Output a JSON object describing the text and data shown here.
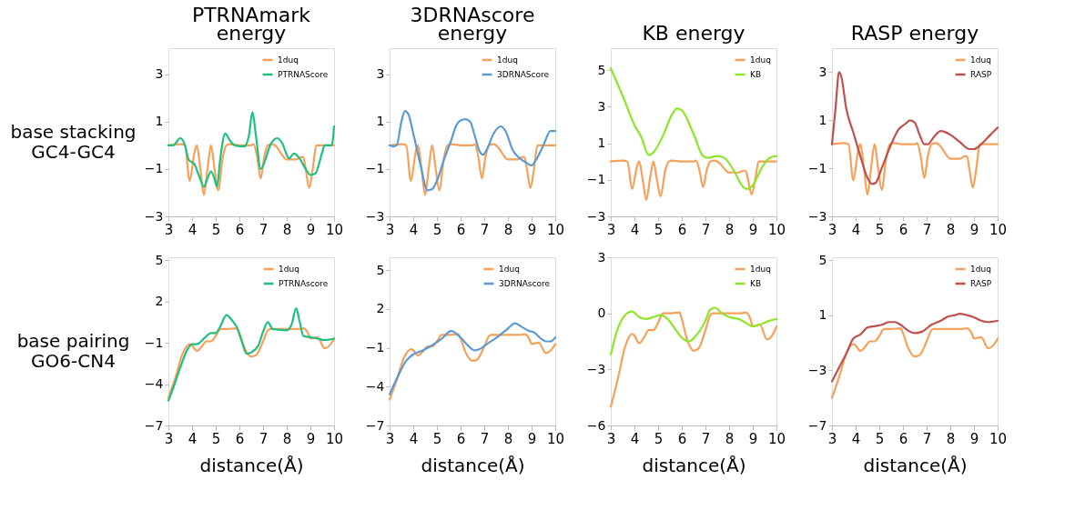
{
  "chart_data": [
    {
      "type": "line",
      "title": "PTRNAmark\nenergy",
      "ylabel": "base stacking\nGC4-GC4",
      "xlim": [
        3,
        10
      ],
      "xticks": [
        3,
        4,
        5,
        6,
        7,
        8,
        9,
        10
      ],
      "ylim": [
        -3,
        4.1
      ],
      "yticks": [
        -3,
        -1,
        1,
        3
      ],
      "grid": false,
      "legend": "top right",
      "series": [
        {
          "name": "1duq",
          "color": "#f5a15a",
          "x": [
            3,
            3.5,
            3.7,
            3.9,
            4.1,
            4.2,
            4.35,
            4.5,
            4.65,
            4.8,
            4.95,
            5.1,
            5.3,
            5.45,
            5.6,
            6,
            6.5,
            6.6,
            6.75,
            6.9,
            7.05,
            7.2,
            7.4,
            7.6,
            7.8,
            8,
            8.4,
            8.6,
            8.7,
            8.8,
            8.95,
            9.1,
            9.25,
            9.5,
            10
          ],
          "values": [
            0,
            0.05,
            0,
            -1.5,
            -0.3,
            0,
            -1,
            -2.1,
            -1,
            0,
            -1,
            -1.9,
            -0.5,
            0,
            0.05,
            0,
            0,
            0.05,
            -0.5,
            -1.4,
            -0.5,
            0,
            0.05,
            -0.1,
            -0.4,
            -0.6,
            -0.6,
            -0.5,
            -0.5,
            -1,
            -1.8,
            -1,
            0,
            0,
            0
          ]
        },
        {
          "name": "PTRNAScore",
          "color": "#1fc07f",
          "x": [
            3,
            3.2,
            3.5,
            3.7,
            3.85,
            4.1,
            4.3,
            4.5,
            4.65,
            4.8,
            5,
            5.05,
            5.2,
            5.4,
            5.6,
            5.8,
            6.2,
            6.4,
            6.55,
            6.7,
            6.9,
            7.1,
            7.3,
            7.6,
            7.8,
            8.1,
            8.3,
            8.5,
            8.8,
            9,
            9.2,
            9.5,
            9.6,
            9.9,
            10
          ],
          "values": [
            0,
            0,
            0.3,
            0,
            -0.6,
            -0.8,
            -1.3,
            -1.75,
            -1.4,
            -1.1,
            -1.6,
            -1.75,
            -0.5,
            0.5,
            0.2,
            0,
            -0.05,
            0.4,
            1.4,
            0.4,
            -1,
            -0.6,
            0,
            0.3,
            0.1,
            -0.55,
            -0.35,
            -0.5,
            -1,
            -1.25,
            -1.2,
            -0.3,
            0,
            0,
            0.8
          ]
        }
      ]
    },
    {
      "type": "line",
      "title": "3DRNAscore\nenergy",
      "xlim": [
        3,
        10
      ],
      "xticks": [
        3,
        4,
        5,
        6,
        7,
        8,
        9,
        10
      ],
      "ylim": [
        -3,
        4.1
      ],
      "yticks": [
        -3,
        -1,
        1,
        3
      ],
      "grid": false,
      "legend": "top right",
      "series": [
        {
          "name": "1duq",
          "color": "#f5a15a",
          "x": [
            3,
            3.5,
            3.7,
            3.9,
            4.1,
            4.2,
            4.35,
            4.5,
            4.65,
            4.8,
            4.95,
            5.1,
            5.3,
            5.45,
            5.6,
            6,
            6.5,
            6.6,
            6.75,
            6.9,
            7.05,
            7.2,
            7.4,
            7.6,
            7.8,
            8,
            8.4,
            8.6,
            8.7,
            8.8,
            8.95,
            9.1,
            9.25,
            9.5,
            10
          ],
          "values": [
            0,
            0.05,
            0,
            -1.5,
            -0.3,
            0,
            -1,
            -2.1,
            -1,
            0,
            -1,
            -1.9,
            -0.5,
            0,
            0.05,
            0,
            0,
            0.05,
            -0.5,
            -1.4,
            -0.5,
            0,
            0.05,
            -0.1,
            -0.4,
            -0.6,
            -0.6,
            -0.5,
            -0.5,
            -1,
            -1.8,
            -1,
            0,
            0,
            0
          ]
        },
        {
          "name": "3DRNAScore",
          "color": "#5b9bd5",
          "x": [
            3,
            3.15,
            3.3,
            3.5,
            3.65,
            3.8,
            4,
            4.3,
            4.6,
            4.8,
            5,
            5.3,
            5.6,
            5.8,
            6,
            6.2,
            6.4,
            6.6,
            6.8,
            6.95,
            7.1,
            7.4,
            7.7,
            7.9,
            8.2,
            8.5,
            8.8,
            9,
            9.2,
            9.5,
            9.8,
            10
          ],
          "values": [
            0,
            -0.05,
            0,
            1,
            1.45,
            1.3,
            0.5,
            -0.8,
            -1.9,
            -1.85,
            -1.5,
            -0.6,
            0.2,
            0.8,
            1.05,
            1.1,
            1,
            0.4,
            -0.25,
            -0.4,
            -0.2,
            0.5,
            0.8,
            0.6,
            -0.2,
            -0.55,
            -0.75,
            -0.85,
            -0.6,
            0,
            0.6,
            0.6
          ]
        }
      ]
    },
    {
      "type": "line",
      "title": "KB energy",
      "xlim": [
        3,
        10
      ],
      "xticks": [
        3,
        4,
        5,
        6,
        7,
        8,
        9,
        10
      ],
      "ylim": [
        -3,
        6.2
      ],
      "yticks": [
        -3,
        -1,
        1,
        3,
        5
      ],
      "grid": false,
      "legend": "top right",
      "series": [
        {
          "name": "1duq",
          "color": "#f5a15a",
          "x": [
            3,
            3.5,
            3.7,
            3.9,
            4.1,
            4.2,
            4.35,
            4.5,
            4.65,
            4.8,
            4.95,
            5.1,
            5.3,
            5.45,
            5.6,
            6,
            6.5,
            6.6,
            6.75,
            6.9,
            7.05,
            7.2,
            7.4,
            7.6,
            7.8,
            8,
            8.4,
            8.6,
            8.7,
            8.8,
            8.95,
            9.1,
            9.25,
            9.5,
            10
          ],
          "values": [
            0,
            0.05,
            0,
            -1.5,
            -0.3,
            0,
            -1,
            -2.1,
            -1,
            0,
            -1,
            -1.9,
            -0.5,
            0,
            0.05,
            0,
            0,
            0.05,
            -0.5,
            -1.4,
            -0.5,
            0,
            0.05,
            -0.1,
            -0.4,
            -0.6,
            -0.6,
            -0.5,
            -0.5,
            -1,
            -1.8,
            -1,
            0,
            0,
            0
          ]
        },
        {
          "name": "KB",
          "color": "#8ee62a",
          "x": [
            3,
            3.5,
            4,
            4.3,
            4.6,
            4.8,
            5.2,
            5.6,
            5.8,
            6,
            6.5,
            6.9,
            7.1,
            7.5,
            7.8,
            8.2,
            8.6,
            8.8,
            9,
            9.4,
            9.7,
            10
          ],
          "values": [
            5.1,
            3.6,
            2,
            1.3,
            0.35,
            0.5,
            1.4,
            2.6,
            2.9,
            2.8,
            1.5,
            0.3,
            0.2,
            0.3,
            0.2,
            -0.5,
            -1.4,
            -1.5,
            -1.3,
            -0.3,
            0.2,
            0.3
          ]
        }
      ]
    },
    {
      "type": "line",
      "title": "RASP energy",
      "xlim": [
        3,
        10
      ],
      "xticks": [
        3,
        4,
        5,
        6,
        7,
        8,
        9,
        10
      ],
      "ylim": [
        -3,
        4
      ],
      "yticks": [
        -3,
        -1,
        1,
        3
      ],
      "grid": false,
      "legend": "top right",
      "series": [
        {
          "name": "1duq",
          "color": "#f5a15a",
          "x": [
            3,
            3.5,
            3.7,
            3.9,
            4.1,
            4.2,
            4.35,
            4.5,
            4.65,
            4.8,
            4.95,
            5.1,
            5.3,
            5.45,
            5.6,
            6,
            6.5,
            6.6,
            6.75,
            6.9,
            7.05,
            7.2,
            7.4,
            7.6,
            7.8,
            8,
            8.4,
            8.6,
            8.7,
            8.8,
            8.95,
            9.1,
            9.25,
            9.5,
            10
          ],
          "values": [
            0,
            0.05,
            0,
            -1.5,
            -0.3,
            0,
            -1,
            -2.1,
            -1,
            0,
            -1,
            -1.9,
            -0.5,
            0,
            0.05,
            0,
            0,
            0.05,
            -0.5,
            -1.4,
            -0.5,
            0,
            0.05,
            -0.1,
            -0.4,
            -0.6,
            -0.6,
            -0.5,
            -0.5,
            -1,
            -1.8,
            -1,
            0,
            0,
            0
          ]
        },
        {
          "name": "RASP",
          "color": "#c0504d",
          "x": [
            3,
            3.15,
            3.3,
            3.4,
            3.6,
            3.9,
            4.2,
            4.5,
            4.7,
            4.85,
            5.1,
            5.5,
            5.8,
            6.1,
            6.3,
            6.5,
            6.7,
            6.9,
            7.05,
            7.3,
            7.6,
            8,
            8.4,
            8.8,
            9,
            9.3,
            9.7,
            10
          ],
          "values": [
            0,
            1.5,
            3,
            2.8,
            1.5,
            0.5,
            -0.5,
            -1.4,
            -1.65,
            -1.6,
            -1,
            0,
            0.6,
            0.85,
            1,
            0.9,
            0.4,
            0,
            0,
            0.3,
            0.55,
            0.4,
            0.1,
            -0.2,
            -0.2,
            0,
            0.4,
            0.7
          ]
        }
      ]
    },
    {
      "type": "line",
      "ylabel": "base pairing\nGO6-CN4",
      "xlabel": "distance(Å)",
      "xlim": [
        3,
        10
      ],
      "xticks": [
        3,
        4,
        5,
        6,
        7,
        8,
        9,
        10
      ],
      "ylim": [
        -7,
        5.2
      ],
      "yticks": [
        -7,
        -4,
        -1,
        2,
        5
      ],
      "grid": false,
      "legend": "top right",
      "series": [
        {
          "name": "1duq",
          "color": "#f5a15a",
          "x": [
            3,
            3.3,
            3.6,
            3.9,
            4,
            4.2,
            4.4,
            4.6,
            4.8,
            5,
            5.2,
            5.5,
            5.9,
            6,
            6.2,
            6.5,
            6.7,
            7,
            7.2,
            7.3,
            8,
            8.5,
            8.7,
            8.9,
            9,
            9.3,
            9.6,
            9.9,
            10
          ],
          "values": [
            -5,
            -3.5,
            -1.8,
            -1.1,
            -1.2,
            -1.6,
            -1.3,
            -0.9,
            -0.9,
            -0.5,
            0,
            0,
            0.05,
            -0.3,
            -1.3,
            -2,
            -1.9,
            -0.9,
            -0.1,
            0,
            0,
            0,
            0.05,
            -0.3,
            -0.7,
            -0.6,
            -1.4,
            -1,
            -0.7
          ]
        },
        {
          "name": "PTRNAscore",
          "color": "#1fc07f",
          "x": [
            3,
            3.2,
            3.5,
            3.8,
            4,
            4.2,
            4.5,
            4.8,
            5,
            5.2,
            5.45,
            5.7,
            5.9,
            6.1,
            6.3,
            6.5,
            6.8,
            7,
            7.2,
            7.4,
            7.6,
            8,
            8.2,
            8.4,
            8.55,
            8.7,
            9,
            9.3,
            9.6,
            10
          ],
          "values": [
            -5.2,
            -4.3,
            -2.8,
            -1.5,
            -1.1,
            -1.1,
            -0.7,
            -0.3,
            -0.3,
            0.2,
            1,
            0.6,
            0.1,
            -0.9,
            -1.8,
            -1.7,
            -1.2,
            -0.2,
            0.5,
            0,
            -0.05,
            -0.1,
            0.3,
            1.5,
            0.5,
            -0.5,
            -0.6,
            -0.7,
            -0.8,
            -0.7
          ]
        }
      ]
    },
    {
      "type": "line",
      "xlabel": "distance(Å)",
      "xlim": [
        3,
        10
      ],
      "xticks": [
        3,
        4,
        5,
        6,
        7,
        8,
        9,
        10
      ],
      "ylim": [
        -7,
        6
      ],
      "yticks": [
        -7,
        -4,
        -1,
        2,
        5
      ],
      "grid": false,
      "legend": "top right",
      "series": [
        {
          "name": "1duq",
          "color": "#f5a15a",
          "x": [
            3,
            3.3,
            3.6,
            3.9,
            4,
            4.2,
            4.4,
            4.6,
            4.8,
            5,
            5.2,
            5.5,
            5.9,
            6,
            6.2,
            6.5,
            6.7,
            7,
            7.2,
            7.3,
            8,
            8.5,
            8.7,
            8.9,
            9,
            9.3,
            9.6,
            9.9,
            10
          ],
          "values": [
            -5,
            -3.5,
            -1.8,
            -1.1,
            -1.2,
            -1.6,
            -1.3,
            -0.9,
            -0.9,
            -0.5,
            0,
            0,
            0.05,
            -0.3,
            -1.3,
            -2,
            -1.9,
            -0.9,
            -0.1,
            0,
            0,
            0,
            0.05,
            -0.3,
            -0.7,
            -0.6,
            -1.4,
            -1,
            -0.7
          ]
        },
        {
          "name": "3DRNAscore",
          "color": "#5b9bd5",
          "x": [
            3,
            3.3,
            3.7,
            4,
            4.4,
            4.8,
            5.2,
            5.6,
            6,
            6.3,
            6.6,
            6.8,
            7.2,
            7.6,
            8,
            8.3,
            8.6,
            8.9,
            9.1,
            9.4,
            9.6,
            9.8,
            10
          ],
          "values": [
            -4.6,
            -3.4,
            -2,
            -1.5,
            -1.2,
            -0.8,
            -0.3,
            0.3,
            -0.2,
            -0.8,
            -1.2,
            -1.1,
            -0.6,
            -0.1,
            0.5,
            0.9,
            0.6,
            0.3,
            0.2,
            -0.3,
            -0.5,
            -0.5,
            -0.2
          ]
        }
      ]
    },
    {
      "type": "line",
      "xlabel": "distance(Å)",
      "xlim": [
        3,
        10
      ],
      "xticks": [
        3,
        4,
        5,
        6,
        7,
        8,
        9,
        10
      ],
      "ylim": [
        -6,
        3
      ],
      "yticks": [
        -6,
        -3,
        0,
        3
      ],
      "grid": false,
      "legend": "top right",
      "series": [
        {
          "name": "1duq",
          "color": "#f5a15a",
          "x": [
            3,
            3.3,
            3.6,
            3.9,
            4,
            4.2,
            4.4,
            4.6,
            4.8,
            5,
            5.2,
            5.5,
            5.9,
            6,
            6.2,
            6.5,
            6.7,
            7,
            7.2,
            7.3,
            8,
            8.5,
            8.7,
            8.9,
            9,
            9.3,
            9.6,
            9.9,
            10
          ],
          "values": [
            -5,
            -3.5,
            -1.8,
            -1.1,
            -1.2,
            -1.6,
            -1.3,
            -0.9,
            -0.9,
            -0.5,
            0,
            0,
            0.05,
            -0.3,
            -1.3,
            -2,
            -1.9,
            -0.9,
            -0.1,
            0,
            0,
            0,
            0.05,
            -0.3,
            -0.7,
            -0.6,
            -1.4,
            -1,
            -0.7
          ]
        },
        {
          "name": "KB",
          "color": "#8ee62a",
          "x": [
            3,
            3.3,
            3.6,
            3.9,
            4.2,
            4.5,
            4.8,
            5.1,
            5.4,
            5.7,
            6,
            6.3,
            6.6,
            7,
            7.2,
            7.4,
            7.7,
            8,
            8.4,
            8.7,
            9,
            9.3,
            9.7,
            10
          ],
          "values": [
            -2.2,
            -0.8,
            -0.1,
            0.1,
            -0.2,
            -0.3,
            -0.2,
            -0.1,
            -0.3,
            -0.8,
            -1.3,
            -1.5,
            -1.2,
            -0.4,
            0.2,
            0.3,
            0,
            -0.2,
            -0.3,
            -0.5,
            -0.7,
            -0.6,
            -0.4,
            -0.3
          ]
        }
      ]
    },
    {
      "type": "line",
      "xlabel": "distance(Å)",
      "xlim": [
        3,
        10
      ],
      "xticks": [
        3,
        4,
        5,
        6,
        7,
        8,
        9,
        10
      ],
      "ylim": [
        -7,
        5.2
      ],
      "yticks": [
        -7,
        -3,
        1,
        5
      ],
      "grid": false,
      "legend": "top right",
      "series": [
        {
          "name": "1duq",
          "color": "#f5a15a",
          "x": [
            3,
            3.3,
            3.6,
            3.9,
            4,
            4.2,
            4.4,
            4.6,
            4.8,
            5,
            5.2,
            5.5,
            5.9,
            6,
            6.2,
            6.5,
            6.7,
            7,
            7.2,
            7.3,
            8,
            8.5,
            8.7,
            8.9,
            9,
            9.3,
            9.6,
            9.9,
            10
          ],
          "values": [
            -5,
            -3.5,
            -1.8,
            -1.1,
            -1.2,
            -1.6,
            -1.3,
            -0.9,
            -0.9,
            -0.5,
            0,
            0,
            0.05,
            -0.3,
            -1.3,
            -2,
            -1.9,
            -0.9,
            -0.1,
            0,
            0,
            0,
            0.05,
            -0.3,
            -0.7,
            -0.6,
            -1.4,
            -1,
            -0.7
          ]
        },
        {
          "name": "RASP",
          "color": "#c0504d",
          "x": [
            3,
            3.3,
            3.6,
            3.9,
            4.2,
            4.5,
            4.8,
            5.1,
            5.4,
            5.65,
            5.9,
            6.2,
            6.5,
            6.8,
            7.2,
            7.6,
            7.9,
            8.2,
            8.4,
            8.7,
            9,
            9.3,
            9.6,
            10
          ],
          "values": [
            -3.8,
            -2.8,
            -1.8,
            -0.7,
            -0.4,
            0.1,
            0.2,
            0.3,
            0.5,
            0.5,
            0.3,
            -0.1,
            -0.3,
            -0.2,
            0.3,
            0.6,
            0.9,
            1,
            1.1,
            1,
            0.85,
            0.6,
            0.5,
            0.6
          ]
        }
      ]
    }
  ]
}
